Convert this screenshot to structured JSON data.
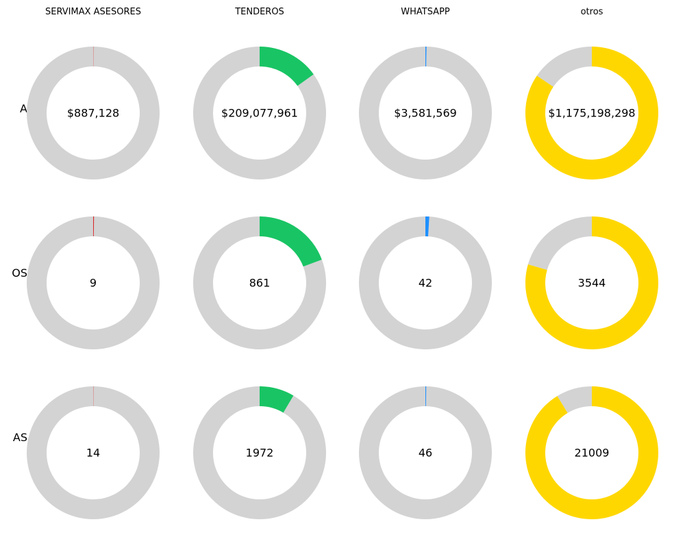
{
  "chart_data": {
    "type": "pie",
    "variant": "donut-grid",
    "columns": [
      "SERVIMAX ASESORES",
      "TENDEROS",
      "WHATSAPP",
      "otros"
    ],
    "column_colors": [
      "#d62728",
      "#19c464",
      "#1e90ff",
      "#ffd700"
    ],
    "remainder_color": "#d3d3d3",
    "rows": [
      {
        "label": "A",
        "share_of_total": [
          0.0006,
          0.151,
          0.0026,
          0.845
        ],
        "center_labels": [
          "$887,128",
          "$209,077,961",
          "$3,581,569",
          "$1,175,198,298"
        ]
      },
      {
        "label": "OS",
        "share_of_total": [
          0.002,
          0.193,
          0.0094,
          0.795
        ],
        "center_labels": [
          "9",
          "861",
          "42",
          "3544"
        ]
      },
      {
        "label": "AS",
        "share_of_total": [
          0.0006,
          0.085,
          0.002,
          0.913
        ],
        "center_labels": [
          "14",
          "1972",
          "46",
          "21009"
        ]
      }
    ]
  }
}
